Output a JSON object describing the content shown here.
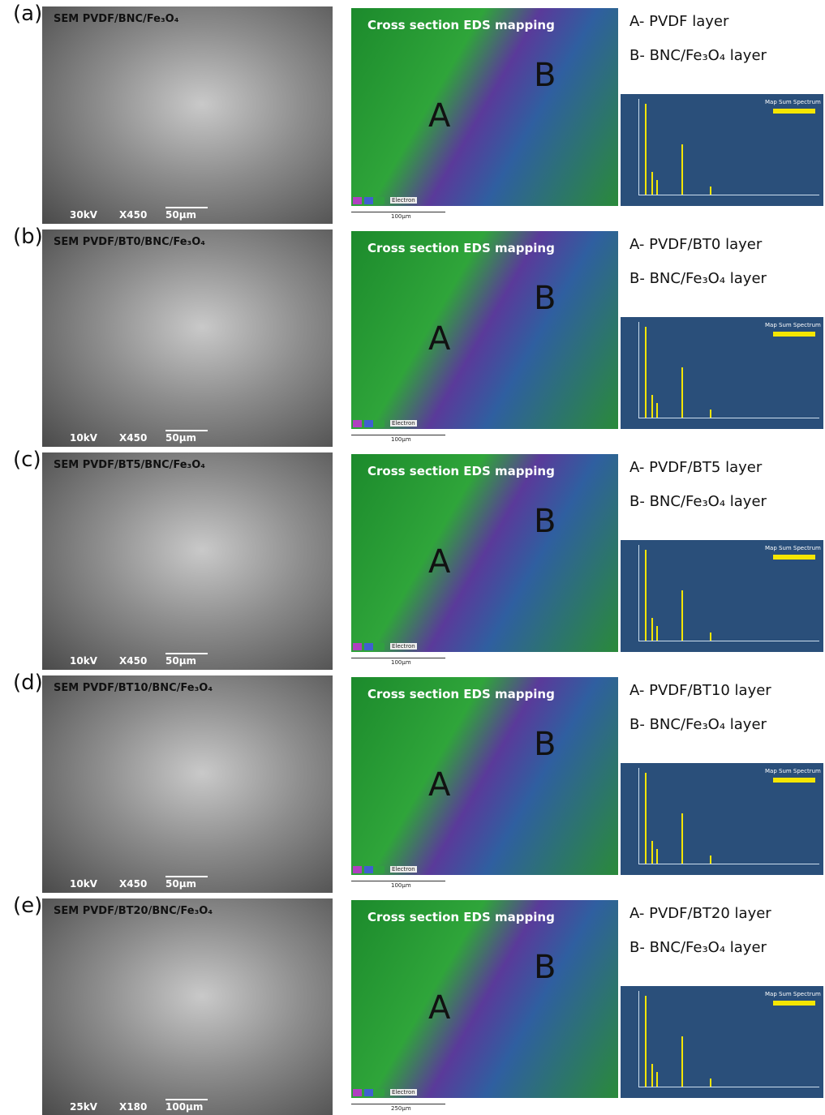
{
  "panels": [
    {
      "label": "(a)",
      "sem_title": "SEM PVDF/BNC/Fe₃O₄",
      "sem_scale": [
        "30kV",
        "X450",
        "50µm"
      ],
      "eds_title": "Cross section EDS mapping",
      "eds_marks": [
        "A",
        "B"
      ],
      "eds_legend": "Electron",
      "eds_scale": "100µm",
      "layers": [
        "A- PVDF layer",
        "B- BNC/Fe₃O₄ layer"
      ],
      "spectrum_title": "Map Sum Spectrum"
    },
    {
      "label": "(b)",
      "sem_title": "SEM PVDF/BT0/BNC/Fe₃O₄",
      "sem_scale": [
        "10kV",
        "X450",
        "50µm"
      ],
      "eds_title": "Cross section EDS mapping",
      "eds_marks": [
        "A",
        "B"
      ],
      "eds_legend": "Electron",
      "eds_scale": "100µm",
      "layers": [
        "A- PVDF/BT0 layer",
        "B- BNC/Fe₃O₄ layer"
      ],
      "spectrum_title": "Map Sum Spectrum"
    },
    {
      "label": "(c)",
      "sem_title": "SEM PVDF/BT5/BNC/Fe₃O₄",
      "sem_scale": [
        "10kV",
        "X450",
        "50µm"
      ],
      "eds_title": "Cross section EDS mapping",
      "eds_marks": [
        "A",
        "B"
      ],
      "eds_legend": "Electron",
      "eds_scale": "100µm",
      "layers": [
        "A- PVDF/BT5 layer",
        "B- BNC/Fe₃O₄ layer"
      ],
      "spectrum_title": "Map Sum Spectrum"
    },
    {
      "label": "(d)",
      "sem_title": "SEM PVDF/BT10/BNC/Fe₃O₄",
      "sem_scale": [
        "10kV",
        "X450",
        "50µm"
      ],
      "eds_title": "Cross section EDS mapping",
      "eds_marks": [
        "A",
        "B"
      ],
      "eds_legend": "Electron",
      "eds_scale": "100µm",
      "layers": [
        "A- PVDF/BT10 layer",
        "B- BNC/Fe₃O₄ layer"
      ],
      "spectrum_title": "Map Sum Spectrum"
    },
    {
      "label": "(e)",
      "sem_title": "SEM PVDF/BT20/BNC/Fe₃O₄",
      "sem_scale": [
        "25kV",
        "X180",
        "100µm"
      ],
      "eds_title": "Cross section EDS mapping",
      "eds_marks": [
        "A",
        "B"
      ],
      "eds_legend": "Electron",
      "eds_scale": "250µm",
      "layers": [
        "A- PVDF/BT20 layer",
        "B- BNC/Fe₃O₄ layer"
      ],
      "spectrum_title": "Map Sum Spectrum"
    }
  ]
}
